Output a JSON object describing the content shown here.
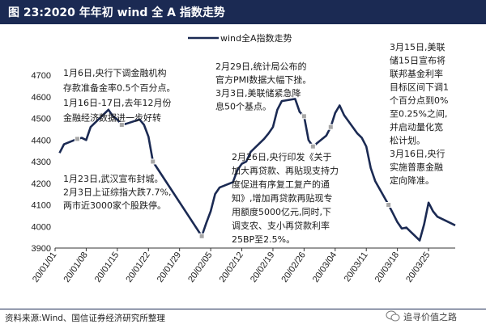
{
  "header": {
    "title": "图 23:2020 年年初 wind 全 A 指数走势"
  },
  "footer": {
    "source": "资料来源:Wind、国信证券经济研究所整理",
    "watermark": "追寻价值之路"
  },
  "colors": {
    "line": "#1b2a53",
    "marker": "#a6a6a6",
    "title_bg": "#1b2a53"
  },
  "chart_data": {
    "type": "line",
    "title": "",
    "xlabel": "",
    "ylabel": "",
    "ylim": [
      3900,
      4700
    ],
    "yticks": [
      3900,
      4000,
      4100,
      4200,
      4300,
      4400,
      4500,
      4600,
      4700
    ],
    "xticks": [
      "20/01/01",
      "20/01/08",
      "20/01/15",
      "20/01/22",
      "20/01/29",
      "20/02/05",
      "20/02/12",
      "20/02/19",
      "20/02/26",
      "20/03/04",
      "20/03/11",
      "20/03/18",
      "20/03/25"
    ],
    "legend": "wind全A指数走势",
    "series": [
      {
        "name": "wind全A指数走势",
        "x": [
          "20/01/02",
          "20/01/03",
          "20/01/06",
          "20/01/07",
          "20/01/08",
          "20/01/09",
          "20/01/10",
          "20/01/13",
          "20/01/14",
          "20/01/15",
          "20/01/16",
          "20/01/17",
          "20/01/20",
          "20/01/21",
          "20/01/22",
          "20/01/23",
          "20/02/03",
          "20/02/04",
          "20/02/05",
          "20/02/06",
          "20/02/07",
          "20/02/10",
          "20/02/11",
          "20/02/12",
          "20/02/13",
          "20/02/14",
          "20/02/17",
          "20/02/18",
          "20/02/19",
          "20/02/20",
          "20/02/21",
          "20/02/24",
          "20/02/25",
          "20/02/26",
          "20/02/27",
          "20/02/28",
          "20/03/02",
          "20/03/03",
          "20/03/04",
          "20/03/05",
          "20/03/06",
          "20/03/09",
          "20/03/10",
          "20/03/11",
          "20/03/12",
          "20/03/13",
          "20/03/16",
          "20/03/17",
          "20/03/18",
          "20/03/19",
          "20/03/20",
          "20/03/23",
          "20/03/24",
          "20/03/25",
          "20/03/26",
          "20/03/27",
          "20/03/30",
          "20/03/31"
        ],
        "values": [
          4340,
          4380,
          4405,
          4410,
          4400,
          4460,
          4480,
          4540,
          4510,
          4495,
          4470,
          4475,
          4495,
          4470,
          4415,
          4300,
          3955,
          4015,
          4070,
          4150,
          4180,
          4205,
          4260,
          4290,
          4300,
          4345,
          4405,
          4430,
          4460,
          4540,
          4580,
          4590,
          4530,
          4510,
          4400,
          4370,
          4420,
          4460,
          4525,
          4560,
          4515,
          4430,
          4410,
          4370,
          4270,
          4210,
          4100,
          4060,
          4020,
          3990,
          3995,
          3935,
          4010,
          4110,
          4070,
          4045,
          4015,
          4005
        ]
      }
    ],
    "markers": [
      {
        "x": "20/01/06",
        "value": 4405
      },
      {
        "x": "20/01/16",
        "value": 4470
      },
      {
        "x": "20/01/23",
        "value": 4300
      },
      {
        "x": "20/02/03",
        "value": 3955
      },
      {
        "x": "20/02/26",
        "value": 4510
      },
      {
        "x": "20/02/28",
        "value": 4370
      },
      {
        "x": "20/03/03",
        "value": 4460
      },
      {
        "x": "20/03/16",
        "value": 4100
      }
    ],
    "annotations": [
      {
        "lines": [
          "1月6日,央行下调金融机构",
          "存款准备金率0.5个百分点。",
          "1月16日-17日,去年12月份",
          "金融经济数据进一步好转"
        ]
      },
      {
        "lines": [
          "1月23日,武汉宣布封城。",
          "2月3日上证综指大跌7.7%,",
          "两市近3000家个股跌停。"
        ]
      },
      {
        "lines": [
          "2月29日,统计局公布的",
          "官方PMI数据大幅下挫。",
          "3月3日,美联储紧急降",
          "息50个基点。"
        ]
      },
      {
        "lines": [
          "2月26日,央行印发《关于",
          "加大再贷款、再贴现支持力",
          "度促进有序复工复产的通",
          "知》,增加再贷款再贴现专",
          "用额度5000亿元,同时,下",
          "调支农、支小再贷款利率",
          "25BP至2.5%。"
        ]
      },
      {
        "lines": [
          "3月15日,美联",
          "储15日宣布将",
          "联邦基金利率",
          "目标区间下调1",
          "个百分点到0%",
          "至0.25%之间,",
          "并启动量化宽",
          "松计划。",
          "3月16日,央行",
          "实施普惠金融",
          "定向降准。"
        ]
      }
    ]
  }
}
